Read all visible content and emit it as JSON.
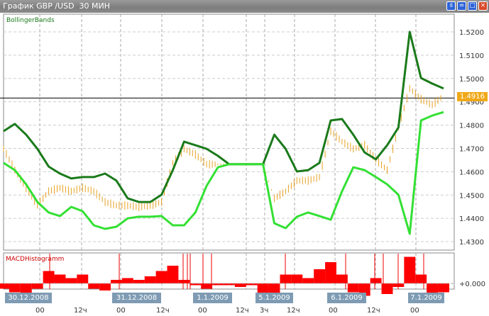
{
  "window": {
    "title": "График GBP /USD  30 МИН",
    "buttons": [
      "pause",
      "minimize",
      "maximize",
      "close"
    ]
  },
  "colors": {
    "upper_band": "#1a7a1a",
    "lower_band": "#33e033",
    "price": "#e8a020",
    "macd": "#ff0000",
    "last_price_bg": "#f0a818",
    "date_label_bg": "#7e9bb3"
  },
  "chart_data": [
    {
      "type": "line",
      "title": "BollingerBands",
      "ylim": [
        1.428,
        1.528
      ],
      "yticks": [
        "1.5200",
        "1.5100",
        "1.5000",
        "1.4900",
        "1.4800",
        "1.4700",
        "1.4600",
        "1.4500",
        "1.4400",
        "1.4300"
      ],
      "last_price": "1.4916",
      "grid": true,
      "series": [
        {
          "role": "upper",
          "values": [
            1.4774,
            1.4805,
            1.4759,
            1.4698,
            1.4622,
            1.4592,
            1.4571,
            1.4577,
            1.4577,
            1.4592,
            1.4562,
            1.4486,
            1.447,
            1.447,
            1.4501,
            1.4607,
            1.4729,
            1.4714,
            1.4698,
            1.4668,
            1.4632,
            1.4632,
            1.4632,
            1.4632,
            1.4759,
            1.4698,
            1.4601,
            1.4607,
            1.4638,
            1.482,
            1.4826,
            1.4759,
            1.4683,
            1.4653,
            1.4714,
            1.479,
            1.52,
            1.5002,
            1.4978,
            1.4957
          ]
        },
        {
          "role": "lower",
          "values": [
            1.4638,
            1.4607,
            1.4546,
            1.447,
            1.4425,
            1.441,
            1.4449,
            1.4431,
            1.437,
            1.4355,
            1.4364,
            1.44,
            1.4407,
            1.4407,
            1.441,
            1.437,
            1.437,
            1.4425,
            1.454,
            1.4619,
            1.4632,
            1.4632,
            1.4632,
            1.4632,
            1.4379,
            1.4358,
            1.4407,
            1.4425,
            1.441,
            1.4394,
            1.4516,
            1.4619,
            1.4607,
            1.4577,
            1.4546,
            1.4501,
            1.4334,
            1.482,
            1.4841,
            1.4856
          ]
        },
        {
          "role": "price",
          "values": [
            1.4698,
            1.4607,
            1.4531,
            1.4455,
            1.4516,
            1.4531,
            1.4516,
            1.4531,
            1.4516,
            1.447,
            1.4455,
            1.4455,
            1.4449,
            1.4455,
            1.447,
            1.4638,
            1.4698,
            1.4674,
            1.4632,
            1.4632,
            1.4632,
            1.4632,
            1.4632,
            1.4632,
            1.4486,
            1.4516,
            1.4562,
            1.4562,
            1.4577,
            1.4774,
            1.4729,
            1.4698,
            1.4714,
            1.4653,
            1.4607,
            1.479,
            1.4957,
            1.4911,
            1.4887,
            1.4926
          ]
        }
      ]
    },
    {
      "type": "bar",
      "title": "MACDHistogramm",
      "ytick": "+0.000",
      "values": [
        -3,
        -5,
        -6,
        -3,
        7,
        5,
        3,
        5,
        -3,
        -4,
        2,
        3,
        2,
        4,
        7,
        10,
        2,
        -1,
        -3,
        -1,
        -1,
        -2,
        -1,
        -6,
        -7,
        5,
        5,
        3,
        8,
        12,
        5,
        -5,
        -7,
        3,
        -6,
        -2,
        15,
        5,
        -7,
        -5
      ]
    }
  ],
  "xaxis": {
    "dates": [
      "30.12.2008",
      "31.12.2008",
      "1.1.2009",
      "5.1.2009",
      "6.1.2009",
      "7.1.2009"
    ],
    "ticks": [
      "00",
      "12ч",
      "00",
      "12ч",
      "00",
      "12ч",
      "3ч",
      "12ч",
      "00",
      "12ч",
      "00"
    ]
  }
}
